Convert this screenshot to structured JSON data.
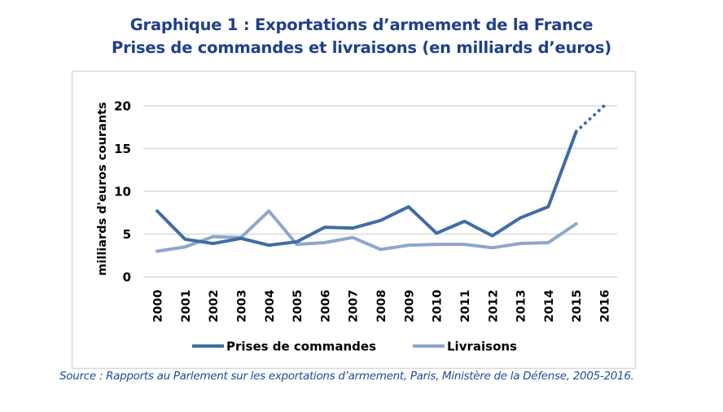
{
  "header": {
    "title_line1": "Graphique 1 : Exportations d’armement de la France",
    "title_line2": "Prises de commandes et livraisons (en milliards d’euros)"
  },
  "source": "Source : Rapports au Parlement sur les exportations d’armement, Paris, Ministère de la Défense, 2005-2016.",
  "colors": {
    "title": "#1f3f8a",
    "prises": "#3f6ca5",
    "livraisons": "#8ea6cc",
    "grid": "#d9d9d9",
    "frame": "#d9d9d9"
  },
  "chart_data": {
    "type": "line",
    "title": "Graphique 1 : Exportations d’armement de la France — Prises de commandes et livraisons (en milliards d’euros)",
    "xlabel": "",
    "ylabel": "milliards d'euros courants",
    "ylim": [
      0,
      20
    ],
    "yticks": [
      "0",
      "5",
      "10",
      "15",
      "20"
    ],
    "grid": true,
    "legend_position": "bottom",
    "categories": [
      "2000",
      "2001",
      "2002",
      "2003",
      "2004",
      "2005",
      "2006",
      "2007",
      "2008",
      "2009",
      "2010",
      "2011",
      "2012",
      "2013",
      "2014",
      "2015",
      "2016"
    ],
    "series": [
      {
        "name": "Prises de commandes",
        "values": [
          7.7,
          4.4,
          3.9,
          4.5,
          3.7,
          4.1,
          5.8,
          5.7,
          6.6,
          8.2,
          5.1,
          6.5,
          4.8,
          6.9,
          8.2,
          17.0,
          20.0
        ],
        "projected_from_index": 15,
        "note": "2015→2016 segment drawn dotted (projection)"
      },
      {
        "name": "Livraisons",
        "values": [
          3.0,
          3.5,
          4.7,
          4.6,
          7.7,
          3.8,
          4.0,
          4.6,
          3.2,
          3.7,
          3.8,
          3.8,
          3.4,
          3.9,
          4.0,
          6.2,
          null
        ]
      }
    ]
  }
}
